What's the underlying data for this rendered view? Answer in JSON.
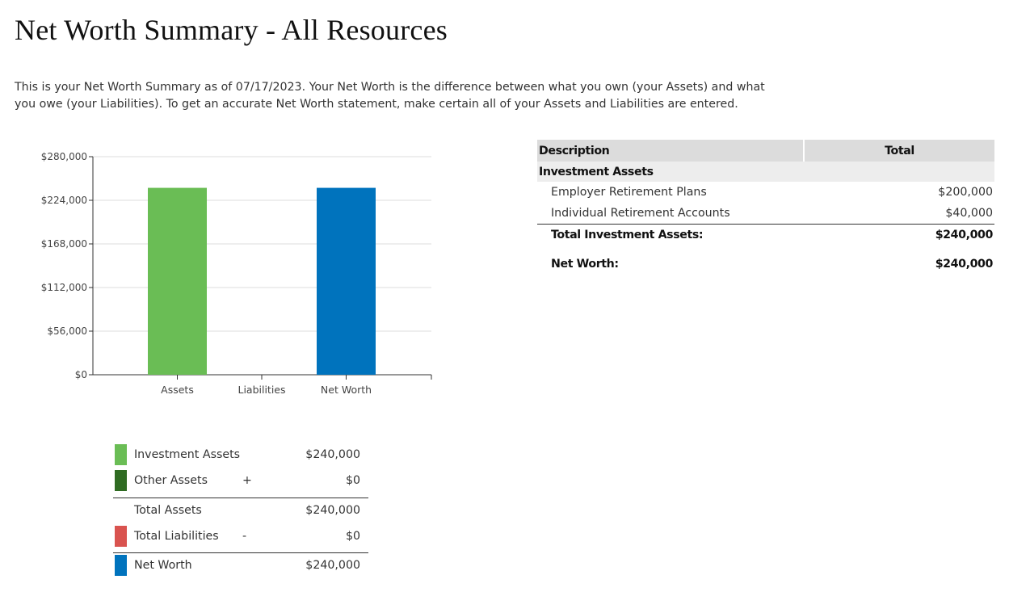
{
  "page": {
    "title": "Net Worth Summary - All Resources",
    "intro": "This is your Net Worth Summary as of 07/17/2023. Your Net Worth is the difference between what you own (your Assets) and what you owe (your Liabilities). To get an accurate Net Worth statement, make certain all of your Assets and Liabilities are entered."
  },
  "chart_data": {
    "type": "bar",
    "categories": [
      "Assets",
      "Liabilities",
      "Net Worth"
    ],
    "values": [
      240000,
      0,
      240000
    ],
    "bar_colors": [
      "#6abd55",
      "#d9534f",
      "#0073bd"
    ],
    "ylim": [
      0,
      280000
    ],
    "y_ticks": [
      0,
      56000,
      112000,
      168000,
      224000,
      280000
    ],
    "y_tick_labels": [
      "$0",
      "$56,000",
      "$112,000",
      "$168,000",
      "$224,000",
      "$280,000"
    ],
    "grid": true,
    "title": "",
    "xlabel": "",
    "ylabel": ""
  },
  "legend": {
    "investment_assets": {
      "label": "Investment Assets",
      "value": "$240,000",
      "color": "#6abd55"
    },
    "other_assets": {
      "label": "Other Assets",
      "operator": "+",
      "value": "$0",
      "color": "#2f6b22"
    },
    "total_assets": {
      "label": "Total Assets",
      "value": "$240,000"
    },
    "total_liabilities": {
      "label": "Total Liabilities",
      "operator": "-",
      "value": "$0",
      "color": "#d9534f"
    },
    "net_worth": {
      "label": "Net Worth",
      "value": "$240,000",
      "color": "#0073bd"
    }
  },
  "table": {
    "headers": {
      "description": "Description",
      "total": "Total"
    },
    "section": "Investment Assets",
    "rows": [
      {
        "description": "Employer Retirement Plans",
        "total": "$200,000"
      },
      {
        "description": "Individual Retirement Accounts",
        "total": "$40,000"
      }
    ],
    "total_row": {
      "description": "Total Investment Assets:",
      "total": "$240,000"
    },
    "net_worth_row": {
      "description": "Net Worth:",
      "total": "$240,000"
    }
  }
}
